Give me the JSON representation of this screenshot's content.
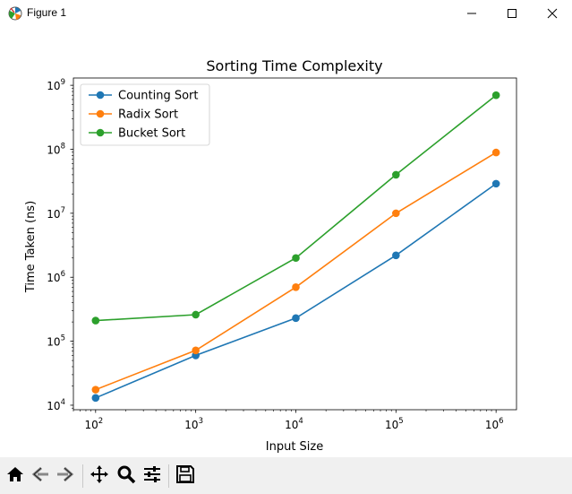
{
  "window": {
    "title": "Figure 1",
    "icons": {
      "app": "matplotlib-icon",
      "minimize": "minimize-icon",
      "maximize": "maximize-icon",
      "close": "close-icon"
    }
  },
  "toolbar": {
    "tools": [
      {
        "name": "home-icon"
      },
      {
        "name": "back-arrow-icon"
      },
      {
        "name": "forward-arrow-icon"
      },
      {
        "name": "pan-move-icon"
      },
      {
        "name": "zoom-magnifier-icon"
      },
      {
        "name": "configure-subplots-icon"
      },
      {
        "name": "save-floppy-icon"
      }
    ]
  },
  "chart_data": {
    "type": "line",
    "title": "Sorting Time Complexity",
    "xlabel": "Input Size",
    "ylabel": "Time Taken (ns)",
    "xscale": "log",
    "yscale": "log",
    "x": [
      100,
      1000,
      10000,
      100000,
      1000000
    ],
    "xlim": [
      60,
      1600000
    ],
    "ylim": [
      8500,
      1300000000
    ],
    "xticks": [
      {
        "base": "10",
        "exp": "2",
        "value": 100
      },
      {
        "base": "10",
        "exp": "3",
        "value": 1000
      },
      {
        "base": "10",
        "exp": "4",
        "value": 10000
      },
      {
        "base": "10",
        "exp": "5",
        "value": 100000
      },
      {
        "base": "10",
        "exp": "6",
        "value": 1000000
      }
    ],
    "yticks": [
      {
        "base": "10",
        "exp": "4",
        "value": 10000
      },
      {
        "base": "10",
        "exp": "5",
        "value": 100000
      },
      {
        "base": "10",
        "exp": "6",
        "value": 1000000
      },
      {
        "base": "10",
        "exp": "7",
        "value": 10000000
      },
      {
        "base": "10",
        "exp": "8",
        "value": 100000000
      },
      {
        "base": "10",
        "exp": "9",
        "value": 1000000000
      }
    ],
    "grid": false,
    "legend_position": "upper-left",
    "series": [
      {
        "name": "Counting Sort",
        "color": "#1f77b4",
        "values": [
          13000,
          60000,
          230000,
          2200000,
          29000000
        ]
      },
      {
        "name": "Radix Sort",
        "color": "#ff7f0e",
        "values": [
          17500,
          72000,
          700000,
          10000000,
          89000000
        ]
      },
      {
        "name": "Bucket Sort",
        "color": "#2ca02c",
        "values": [
          210000,
          260000,
          2000000,
          40000000,
          700000000
        ]
      }
    ]
  }
}
